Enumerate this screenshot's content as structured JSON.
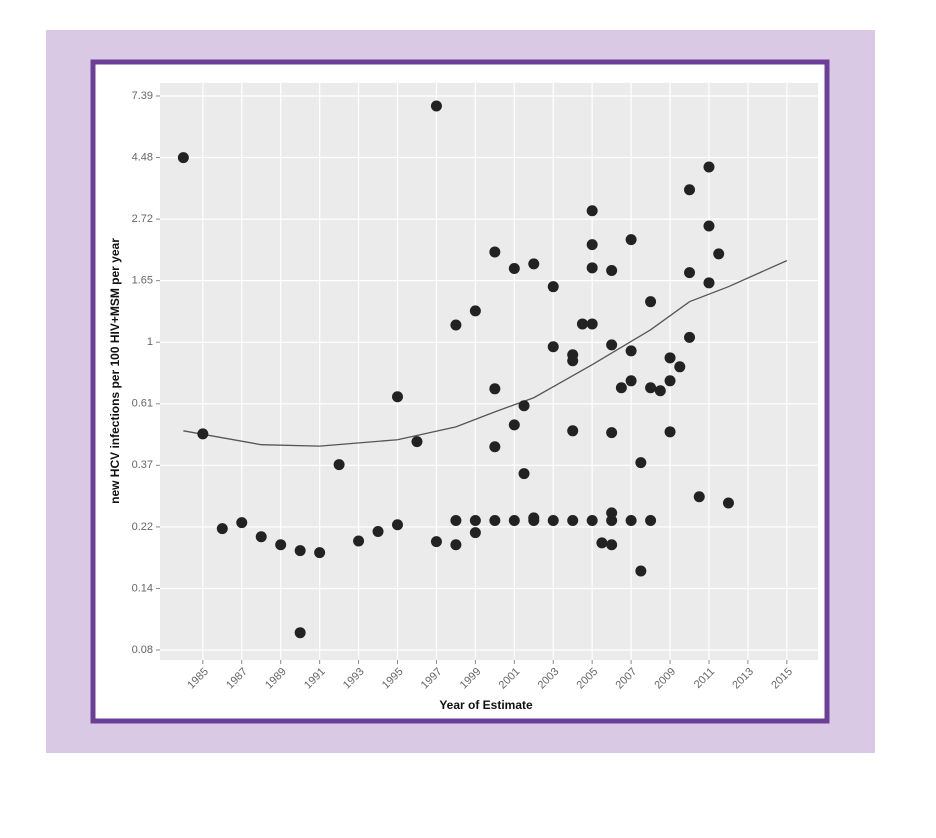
{
  "chart_data": {
    "type": "scatter",
    "x_label": "Year of Estimate",
    "y_label": "new HCV infections per 100 HIV+MSM per year",
    "y_log": true,
    "grid": true,
    "color": "#222222",
    "xlim": [
      1982.8,
      2016.6
    ],
    "xticks": [
      1985,
      1987,
      1989,
      1991,
      1993,
      1995,
      1997,
      1999,
      2001,
      2003,
      2005,
      2007,
      2009,
      2011,
      2013,
      2015
    ],
    "ylim": [
      0.0757,
      8.21
    ],
    "yticks": [
      {
        "value": 0.0821,
        "label": "0.08"
      },
      {
        "value": 0.1353,
        "label": "0.14"
      },
      {
        "value": 0.2231,
        "label": "0.22"
      },
      {
        "value": 0.3679,
        "label": "0.37"
      },
      {
        "value": 0.6065,
        "label": "0.61"
      },
      1,
      {
        "value": 1.6487,
        "label": "1.65"
      },
      {
        "value": 2.7183,
        "label": "2.72"
      },
      {
        "value": 4.4817,
        "label": "4.48"
      },
      {
        "value": 7.3891,
        "label": "7.39"
      }
    ],
    "x": [
      1984,
      1985,
      1986,
      1987,
      1988,
      1989,
      1990,
      1990,
      1991,
      1992,
      1993,
      1994,
      1995,
      1995,
      1996,
      1997,
      1997,
      1998,
      1998,
      1998,
      1999,
      1999,
      1999,
      2000,
      2000,
      2000,
      2000,
      2001,
      2001,
      2001,
      2001.5,
      2001.5,
      2002,
      2002,
      2002,
      2003,
      2003,
      2003,
      2004,
      2004,
      2004,
      2004,
      2004.5,
      2005,
      2005,
      2005,
      2005,
      2005,
      2005.5,
      2006,
      2006,
      2006,
      2006,
      2006,
      2006,
      2006.5,
      2007,
      2007,
      2007,
      2007,
      2007.5,
      2007.5,
      2008,
      2008,
      2008,
      2008.5,
      2009,
      2009,
      2009,
      2009.5,
      2010,
      2010,
      2010,
      2010.5,
      2011,
      2011,
      2011,
      2011.5,
      2012
    ],
    "values": [
      4.48,
      0.475,
      0.22,
      0.231,
      0.206,
      0.193,
      0.184,
      0.0945,
      0.181,
      0.37,
      0.199,
      0.215,
      0.642,
      0.227,
      0.446,
      6.81,
      0.198,
      1.15,
      0.235,
      0.193,
      1.29,
      0.235,
      0.213,
      2.08,
      0.685,
      0.428,
      0.235,
      1.82,
      0.511,
      0.235,
      0.597,
      0.344,
      1.89,
      0.24,
      0.235,
      1.57,
      0.964,
      0.235,
      0.903,
      0.86,
      0.487,
      0.235,
      1.16,
      2.91,
      2.21,
      1.83,
      1.16,
      0.235,
      0.196,
      1.79,
      0.979,
      0.48,
      0.25,
      0.235,
      0.193,
      0.691,
      2.3,
      0.932,
      0.731,
      0.235,
      0.376,
      0.156,
      1.39,
      0.691,
      0.235,
      0.674,
      0.881,
      0.731,
      0.483,
      0.819,
      3.45,
      1.76,
      1.04,
      0.285,
      4.15,
      2.57,
      1.62,
      2.05,
      0.271
    ],
    "trend": {
      "color": "#555555",
      "x": [
        1984,
        1988,
        1991,
        1995,
        1998,
        2000,
        2002,
        2005,
        2008,
        2010,
        2012,
        2015
      ],
      "values": [
        0.487,
        0.435,
        0.43,
        0.453,
        0.503,
        0.568,
        0.637,
        0.833,
        1.106,
        1.39,
        1.57,
        1.94
      ]
    }
  }
}
